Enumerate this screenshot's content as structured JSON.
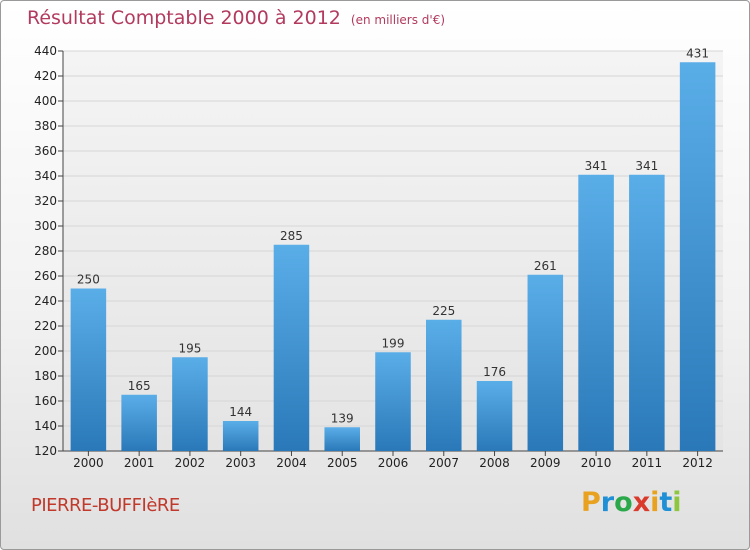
{
  "title": {
    "main": "Résultat Comptable 2000 à 2012",
    "unit": "(en milliers d'€)"
  },
  "commune": "PIERRE-BUFFIèRE",
  "logo": {
    "letters": [
      "P",
      "r",
      "o",
      "x",
      "i",
      "t",
      "i"
    ],
    "colors": [
      "#e8a21f",
      "#1f8fd6",
      "#2aa84a",
      "#d93a2b",
      "#e8a21f",
      "#1f8fd6",
      "#8dc63f"
    ]
  },
  "chart_data": {
    "type": "bar",
    "title": "Résultat Comptable 2000 à 2012",
    "ylabel": "en milliers d'€",
    "xlabel": "",
    "categories": [
      "2000",
      "2001",
      "2002",
      "2003",
      "2004",
      "2005",
      "2006",
      "2007",
      "2008",
      "2009",
      "2010",
      "2011",
      "2012"
    ],
    "values": [
      250,
      165,
      195,
      144,
      285,
      139,
      199,
      225,
      176,
      261,
      341,
      341,
      431
    ],
    "ylim": [
      120,
      440
    ],
    "yticks": [
      120,
      140,
      160,
      180,
      200,
      220,
      240,
      260,
      280,
      300,
      320,
      340,
      360,
      380,
      400,
      420,
      440
    ],
    "grid": true,
    "bar_color": "#3e97d8"
  }
}
